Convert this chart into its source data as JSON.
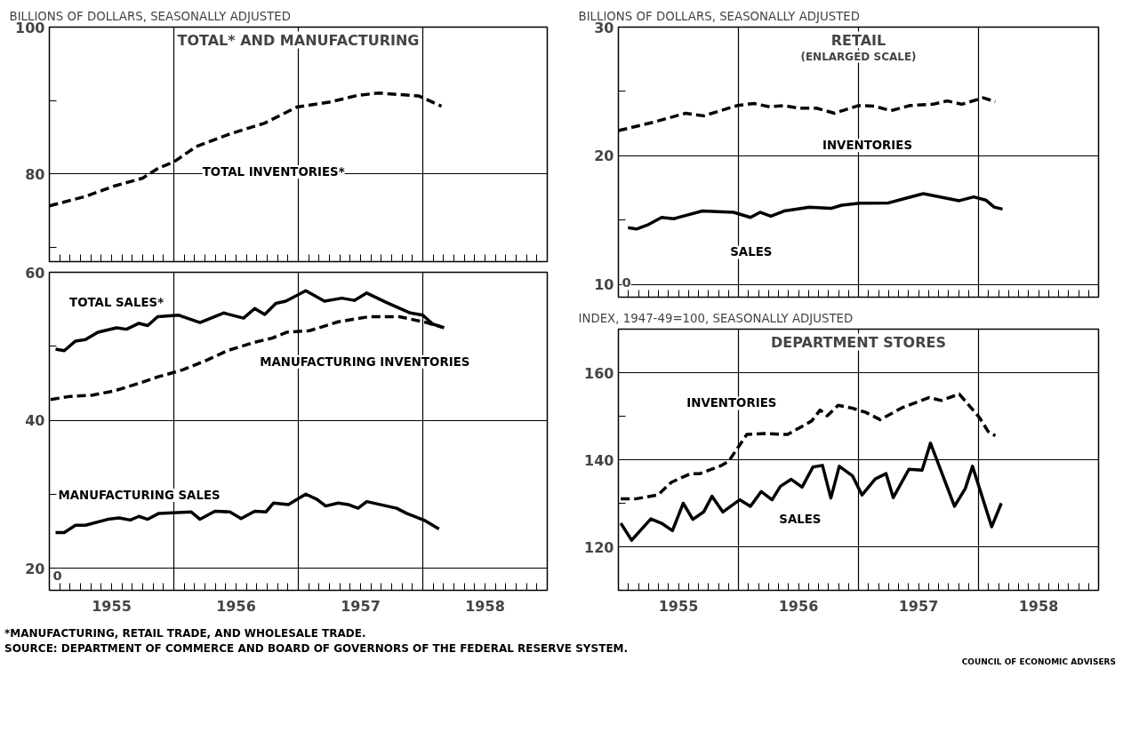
{
  "chart_data": [
    {
      "type": "line",
      "title": "TOTAL* AND MANUFACTURING",
      "ylabel": "BILLIONS OF DOLLARS, SEASONALLY ADJUSTED",
      "xlim": [
        1955,
        1959
      ],
      "ylim": [
        68,
        100
      ],
      "yticks": [
        {
          "value": 70,
          "label": null
        },
        80,
        {
          "value": 90,
          "label": null
        },
        100
      ],
      "grid": "y",
      "ref_lines": [
        {
          "axis": "x",
          "value": 1956,
          "color": "#000000"
        },
        {
          "axis": "x",
          "value": 1957,
          "color": "#000000"
        },
        {
          "axis": "x",
          "value": 1958,
          "color": "#000000"
        }
      ],
      "series": [
        {
          "name": "TOTAL INVENTORIES*",
          "color": "#000000",
          "line_style": "dashed",
          "x": [
            1955.0,
            1955.29,
            1955.52,
            1955.75,
            1955.88,
            1956.0,
            1956.18,
            1956.43,
            1956.73,
            1956.99,
            1957.26,
            1957.48,
            1957.65,
            1957.97,
            1958.15
          ],
          "values": [
            75.6,
            76.9,
            78.3,
            79.4,
            80.8,
            81.6,
            83.7,
            85.3,
            86.9,
            89.1,
            89.8,
            90.7,
            91.0,
            90.6,
            89.2
          ]
        }
      ]
    },
    {
      "type": "line",
      "xlim": [
        1955,
        1959
      ],
      "ylim": [
        17,
        60
      ],
      "xticks": [
        {
          "value": 1955.5,
          "label": "1955"
        },
        {
          "value": 1956.5,
          "label": "1956"
        },
        {
          "value": 1957.5,
          "label": "1957"
        },
        {
          "value": 1958.5,
          "label": "1958"
        }
      ],
      "yticks": [
        20,
        {
          "value": 30,
          "label": null
        },
        40,
        {
          "value": 50,
          "label": null
        },
        60
      ],
      "grid": "y",
      "ref_lines": [
        {
          "axis": "x",
          "value": 1956,
          "color": "#000000"
        },
        {
          "axis": "x",
          "value": 1957,
          "color": "#000000"
        },
        {
          "axis": "x",
          "value": 1958,
          "color": "#000000"
        }
      ],
      "series": [
        {
          "name": "TOTAL SALES*",
          "color": "#000000",
          "line_style": "solid",
          "x": [
            1955.05,
            1955.12,
            1955.21,
            1955.29,
            1955.39,
            1955.54,
            1955.62,
            1955.72,
            1955.79,
            1955.87,
            1956.04,
            1956.21,
            1956.4,
            1956.56,
            1956.65,
            1956.73,
            1956.82,
            1956.9,
            1957.06,
            1957.21,
            1957.35,
            1957.45,
            1957.55,
            1957.71,
            1957.9,
            1958.0,
            1958.08,
            1958.17
          ],
          "values": [
            49.6,
            49.4,
            50.7,
            50.9,
            51.9,
            52.5,
            52.3,
            53.1,
            52.8,
            54.0,
            54.2,
            53.2,
            54.5,
            53.8,
            55.1,
            54.3,
            55.8,
            56.1,
            57.5,
            56.1,
            56.5,
            56.2,
            57.2,
            55.9,
            54.5,
            54.2,
            53.0,
            52.5
          ]
        },
        {
          "name": "MANUFACTURING INVENTORIES",
          "color": "#000000",
          "line_style": "dashed",
          "x": [
            1955.01,
            1955.16,
            1955.35,
            1955.53,
            1955.74,
            1955.88,
            1956.07,
            1956.25,
            1956.43,
            1956.64,
            1956.79,
            1956.91,
            1957.09,
            1957.32,
            1957.57,
            1957.81,
            1958.03,
            1958.17
          ],
          "values": [
            42.8,
            43.2,
            43.4,
            44.0,
            45.1,
            45.9,
            46.8,
            48.0,
            49.4,
            50.5,
            51.1,
            51.9,
            52.1,
            53.3,
            54.0,
            54.0,
            53.2,
            52.5
          ]
        },
        {
          "name": "MANUFACTURING SALES",
          "color": "#000000",
          "line_style": "solid",
          "x": [
            1955.05,
            1955.12,
            1955.21,
            1955.29,
            1955.47,
            1955.56,
            1955.65,
            1955.72,
            1955.79,
            1955.88,
            1956.14,
            1956.21,
            1956.33,
            1956.45,
            1956.54,
            1956.65,
            1956.74,
            1956.8,
            1956.92,
            1957.06,
            1957.15,
            1957.22,
            1957.32,
            1957.4,
            1957.48,
            1957.55,
            1957.79,
            1957.87,
            1958.02,
            1958.13
          ],
          "values": [
            24.8,
            24.8,
            25.8,
            25.8,
            26.6,
            26.8,
            26.5,
            27.0,
            26.6,
            27.4,
            27.6,
            26.6,
            27.7,
            27.6,
            26.7,
            27.7,
            27.6,
            28.8,
            28.6,
            30.0,
            29.3,
            28.4,
            28.8,
            28.6,
            28.1,
            29.0,
            28.1,
            27.4,
            26.4,
            25.3
          ]
        }
      ],
      "annotations": [
        "0"
      ]
    },
    {
      "type": "line",
      "title": "RETAIL",
      "subtitle": "(ENLARGED SCALE)",
      "ylabel": "BILLIONS OF DOLLARS, SEASONALLY ADJUSTED",
      "xlim": [
        1955,
        1959
      ],
      "ylim": [
        9,
        30
      ],
      "yticks": [
        10,
        {
          "value": 15,
          "label": null
        },
        20,
        {
          "value": 25,
          "label": null
        },
        30
      ],
      "grid": "y",
      "ref_lines": [
        {
          "axis": "x",
          "value": 1956,
          "color": "#000000"
        },
        {
          "axis": "x",
          "value": 1957,
          "color": "#000000"
        },
        {
          "axis": "x",
          "value": 1958,
          "color": "#000000"
        }
      ],
      "series": [
        {
          "name": "INVENTORIES",
          "color": "#000000",
          "line_style": "dashed",
          "x": [
            1955.0,
            1955.29,
            1955.56,
            1955.71,
            1955.99,
            1956.13,
            1956.26,
            1956.38,
            1956.5,
            1956.65,
            1956.8,
            1957.0,
            1957.13,
            1957.27,
            1957.43,
            1957.62,
            1957.74,
            1957.86,
            1958.04,
            1958.14
          ],
          "values": [
            21.95,
            22.6,
            23.3,
            23.1,
            23.9,
            24.06,
            23.8,
            23.9,
            23.7,
            23.7,
            23.3,
            23.9,
            23.86,
            23.5,
            23.9,
            24.0,
            24.26,
            24.0,
            24.5,
            24.2
          ]
        },
        {
          "name": "SALES",
          "color": "#000000",
          "line_style": "solid",
          "x": [
            1955.08,
            1955.15,
            1955.24,
            1955.36,
            1955.46,
            1955.7,
            1955.96,
            1956.1,
            1956.18,
            1956.27,
            1956.38,
            1956.59,
            1956.77,
            1956.86,
            1957.01,
            1957.25,
            1957.54,
            1957.84,
            1957.96,
            1958.06,
            1958.13,
            1958.2
          ],
          "values": [
            14.4,
            14.3,
            14.6,
            15.2,
            15.1,
            15.7,
            15.6,
            15.2,
            15.6,
            15.3,
            15.7,
            16.0,
            15.9,
            16.15,
            16.3,
            16.33,
            17.05,
            16.5,
            16.8,
            16.55,
            16.0,
            15.85
          ]
        }
      ],
      "annotations": [
        "0"
      ]
    },
    {
      "type": "line",
      "title": "DEPARTMENT STORES",
      "ylabel": "INDEX, 1947-49=100, SEASONALLY ADJUSTED",
      "xlim": [
        1955,
        1959
      ],
      "ylim": [
        110,
        170
      ],
      "xticks": [
        {
          "value": 1955.5,
          "label": "1955"
        },
        {
          "value": 1956.5,
          "label": "1956"
        },
        {
          "value": 1957.5,
          "label": "1957"
        },
        {
          "value": 1958.5,
          "label": "1958"
        }
      ],
      "yticks": [
        120,
        {
          "value": 130,
          "label": null
        },
        140,
        {
          "value": 150,
          "label": null
        },
        160
      ],
      "grid": "y",
      "ref_lines": [
        {
          "axis": "x",
          "value": 1956,
          "color": "#000000"
        },
        {
          "axis": "x",
          "value": 1957,
          "color": "#000000"
        },
        {
          "axis": "x",
          "value": 1958,
          "color": "#000000"
        }
      ],
      "series": [
        {
          "name": "INVENTORIES",
          "color": "#000000",
          "line_style": "dashed",
          "x": [
            1955.02,
            1955.14,
            1955.33,
            1955.44,
            1955.6,
            1955.68,
            1955.86,
            1955.92,
            1956.07,
            1956.22,
            1956.41,
            1956.61,
            1956.68,
            1956.74,
            1956.83,
            1956.94,
            1957.06,
            1957.18,
            1957.36,
            1957.59,
            1957.69,
            1957.84,
            1958.01,
            1958.08,
            1958.14
          ],
          "values": [
            131.0,
            131.0,
            131.9,
            134.8,
            136.8,
            136.8,
            138.7,
            139.7,
            145.8,
            146.0,
            145.8,
            148.9,
            151.4,
            150.1,
            152.5,
            151.9,
            150.9,
            149.2,
            151.9,
            154.3,
            153.6,
            155.1,
            149.6,
            146.5,
            145.5
          ]
        },
        {
          "name": "SALES",
          "color": "#000000",
          "line_style": "solid",
          "x": [
            1955.02,
            1955.11,
            1955.27,
            1955.36,
            1955.45,
            1955.54,
            1955.62,
            1955.71,
            1955.78,
            1955.87,
            1956.01,
            1956.1,
            1956.19,
            1956.28,
            1956.35,
            1956.44,
            1956.53,
            1956.62,
            1956.7,
            1956.77,
            1956.84,
            1956.95,
            1957.03,
            1957.14,
            1957.23,
            1957.29,
            1957.42,
            1957.53,
            1957.6,
            1957.8,
            1957.89,
            1957.95,
            1958.11,
            1958.19
          ],
          "values": [
            125.4,
            121.5,
            126.4,
            125.4,
            123.7,
            130.0,
            126.3,
            128.0,
            131.6,
            128.0,
            130.8,
            129.3,
            132.7,
            130.8,
            133.9,
            135.5,
            133.7,
            138.3,
            138.7,
            131.2,
            138.5,
            136.3,
            131.9,
            135.6,
            136.8,
            131.3,
            137.8,
            137.6,
            143.8,
            129.3,
            133.4,
            138.5,
            124.6,
            130.0
          ]
        }
      ]
    },
    {
      "type": "other",
      "annotations": [
        "*MANUFACTURING, RETAIL TRADE, AND WHOLESALE TRADE.",
        "SOURCE: DEPARTMENT OF COMMERCE AND BOARD OF GOVERNORS OF THE FEDERAL RESERVE SYSTEM.",
        "COUNCIL OF ECONOMIC ADVISERS"
      ]
    }
  ]
}
